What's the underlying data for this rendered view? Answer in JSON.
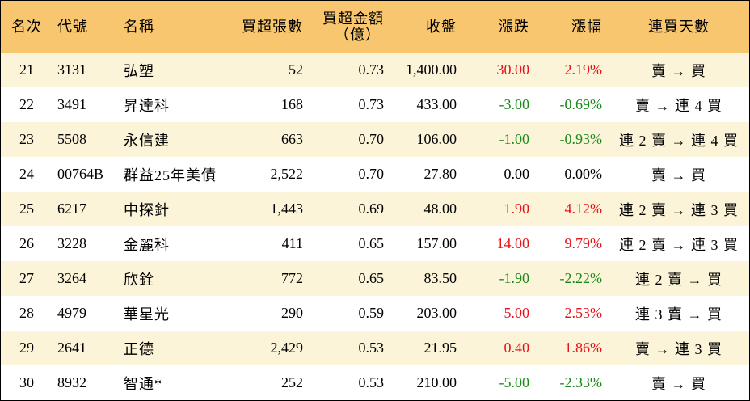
{
  "header": {
    "rank": "名次",
    "code": "代號",
    "name": "名稱",
    "net_buy_lots": "買超張數",
    "net_buy_amount_line1": "買超金額",
    "net_buy_amount_line2": "（億）",
    "close": "收盤",
    "change": "漲跌",
    "change_pct": "漲幅",
    "consecutive_days": "連買天數"
  },
  "colors": {
    "header_bg": "#f8c66e",
    "odd_row_bg": "#fcf4d9",
    "even_row_bg": "#ffffff",
    "up": "#e8141c",
    "down": "#1a8a1a",
    "flat": "#000000"
  },
  "rows": [
    {
      "rank": "21",
      "code": "3131",
      "name": "弘塑",
      "lots": "52",
      "amount": "0.73",
      "close": "1,400.00",
      "change": "30.00",
      "pct": "2.19%",
      "trend": "賣 → 買",
      "dir": "up"
    },
    {
      "rank": "22",
      "code": "3491",
      "name": "昇達科",
      "lots": "168",
      "amount": "0.73",
      "close": "433.00",
      "change": "-3.00",
      "pct": "-0.69%",
      "trend": "賣 → 連 4 買",
      "dir": "down"
    },
    {
      "rank": "23",
      "code": "5508",
      "name": "永信建",
      "lots": "663",
      "amount": "0.70",
      "close": "106.00",
      "change": "-1.00",
      "pct": "-0.93%",
      "trend": "連 2 賣 → 連 4 買",
      "dir": "down"
    },
    {
      "rank": "24",
      "code": "00764B",
      "name": "群益25年美債",
      "lots": "2,522",
      "amount": "0.70",
      "close": "27.80",
      "change": "0.00",
      "pct": "0.00%",
      "trend": "賣 → 買",
      "dir": "flat"
    },
    {
      "rank": "25",
      "code": "6217",
      "name": "中探針",
      "lots": "1,443",
      "amount": "0.69",
      "close": "48.00",
      "change": "1.90",
      "pct": "4.12%",
      "trend": "連 2 賣 → 連 3 買",
      "dir": "up"
    },
    {
      "rank": "26",
      "code": "3228",
      "name": "金麗科",
      "lots": "411",
      "amount": "0.65",
      "close": "157.00",
      "change": "14.00",
      "pct": "9.79%",
      "trend": "連 2 賣 → 連 3 買",
      "dir": "up"
    },
    {
      "rank": "27",
      "code": "3264",
      "name": "欣銓",
      "lots": "772",
      "amount": "0.65",
      "close": "83.50",
      "change": "-1.90",
      "pct": "-2.22%",
      "trend": "連 2 賣 → 買",
      "dir": "down"
    },
    {
      "rank": "28",
      "code": "4979",
      "name": "華星光",
      "lots": "290",
      "amount": "0.59",
      "close": "203.00",
      "change": "5.00",
      "pct": "2.53%",
      "trend": "連 3 賣 → 買",
      "dir": "up"
    },
    {
      "rank": "29",
      "code": "2641",
      "name": "正德",
      "lots": "2,429",
      "amount": "0.53",
      "close": "21.95",
      "change": "0.40",
      "pct": "1.86%",
      "trend": "賣 → 連 3 買",
      "dir": "up"
    },
    {
      "rank": "30",
      "code": "8932",
      "name": "智通*",
      "lots": "252",
      "amount": "0.53",
      "close": "210.00",
      "change": "-5.00",
      "pct": "-2.33%",
      "trend": "賣 → 買",
      "dir": "down"
    }
  ]
}
